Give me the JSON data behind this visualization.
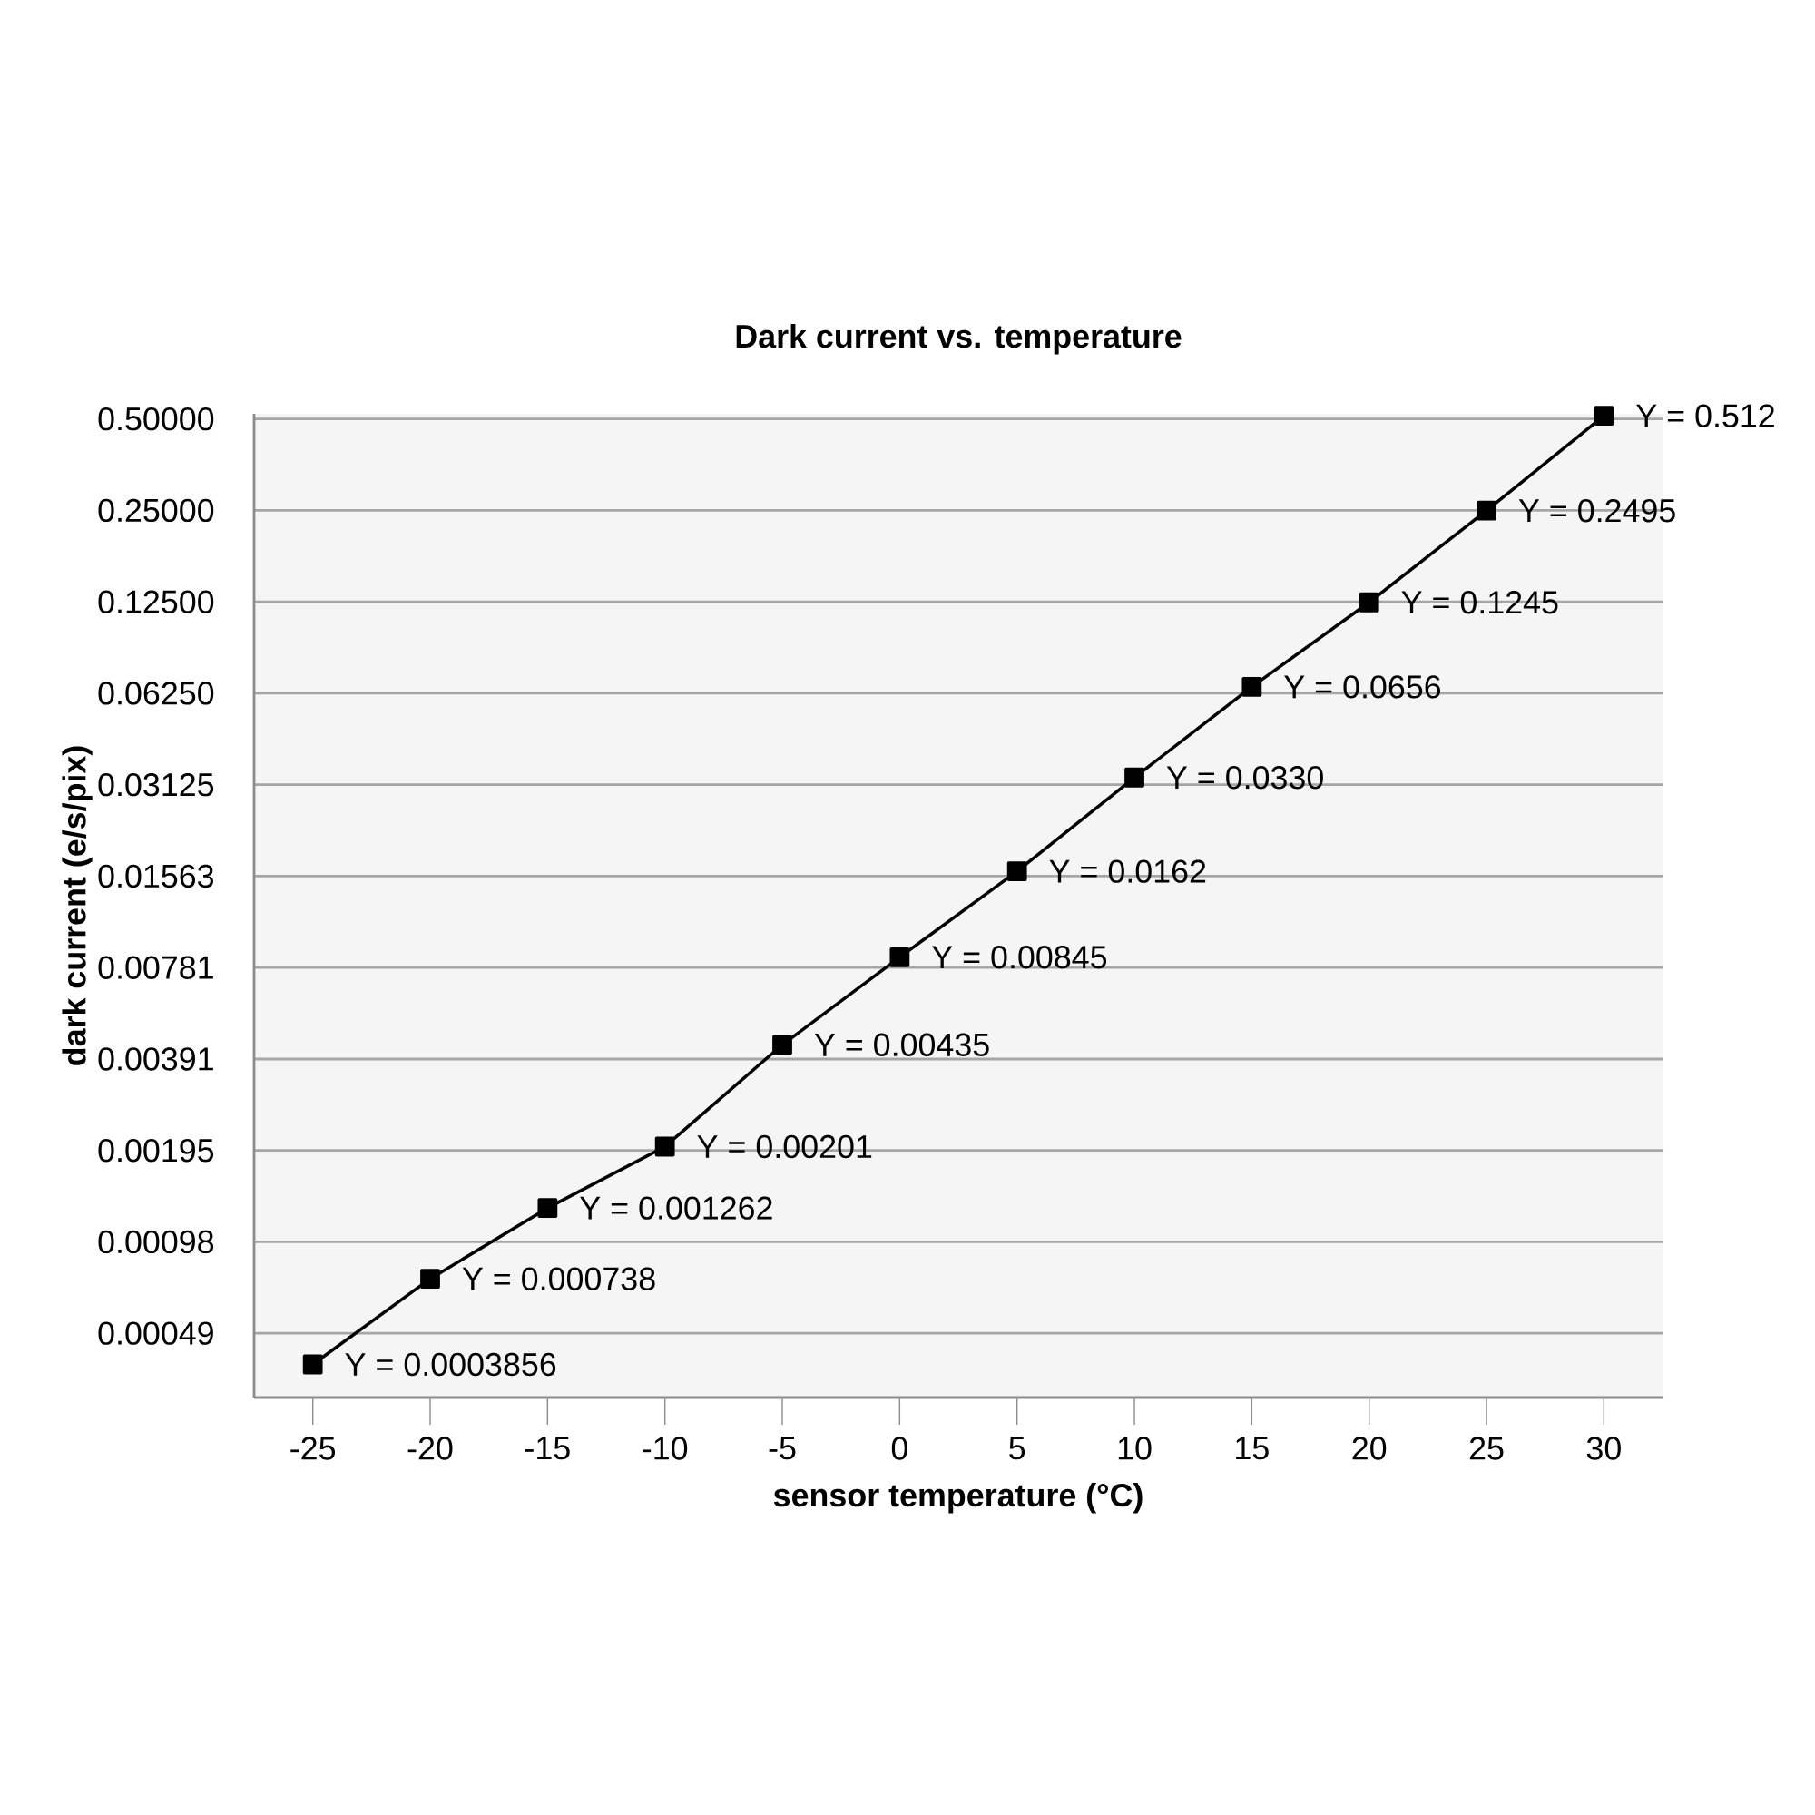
{
  "chart_data": {
    "type": "line",
    "title": "Dark current vs. temperature",
    "xlabel": "sensor temperature (°C)",
    "ylabel": "dark current (e/s/pix)",
    "categories": [
      "-25",
      "-20",
      "-15",
      "-10",
      "-5",
      "0",
      "5",
      "10",
      "15",
      "20",
      "25",
      "30"
    ],
    "values": [
      0.0003856,
      0.000738,
      0.001262,
      0.00201,
      0.00435,
      0.00845,
      0.0162,
      0.033,
      0.0656,
      0.1245,
      0.2495,
      0.512
    ],
    "value_labels": [
      "Y = 0.0003856",
      "Y = 0.000738",
      "Y = 0.001262",
      "Y = 0.00201",
      "Y = 0.00435",
      "Y = 0.00845",
      "Y = 0.0162",
      "Y = 0.0330",
      "Y = 0.0656",
      "Y = 0.1245",
      "Y = 0.2495",
      "Y = 0.512"
    ],
    "color": "#000000",
    "marker": "square",
    "log": "y",
    "grid": "y",
    "ylim": [
      0.0003,
      0.52
    ],
    "yticks": [
      {
        "value": 0.00048828125,
        "label": "0.00049"
      },
      {
        "value": 0.0009765625,
        "label": "0.00098"
      },
      {
        "value": 0.001953125,
        "label": "0.00195"
      },
      {
        "value": 0.00390625,
        "label": "0.00391"
      },
      {
        "value": 0.0078125,
        "label": "0.00781"
      },
      {
        "value": 0.015625,
        "label": "0.01563"
      },
      {
        "value": 0.03125,
        "label": "0.03125"
      },
      {
        "value": 0.0625,
        "label": "0.06250"
      },
      {
        "value": 0.125,
        "label": "0.12500"
      },
      {
        "value": 0.25,
        "label": "0.25000"
      },
      {
        "value": 0.5,
        "label": "0.50000"
      }
    ]
  }
}
